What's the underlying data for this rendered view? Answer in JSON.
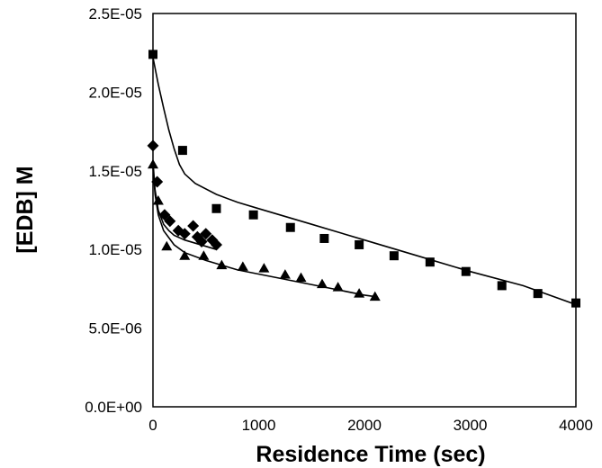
{
  "chart_data": {
    "type": "scatter",
    "title": "",
    "xlabel": "Residence Time (sec)",
    "ylabel": "[EDB] M",
    "xlim": [
      0,
      4000
    ],
    "ylim": [
      0,
      2.5e-05
    ],
    "x_ticks": [
      "0",
      "1000",
      "2000",
      "3000",
      "4000"
    ],
    "y_ticks": [
      "0.0E+00",
      "5.0E-06",
      "1.0E-05",
      "1.5E-05",
      "2.0E-05",
      "2.5E-05"
    ],
    "grid": false,
    "legend": "none",
    "series": [
      {
        "marker": "square",
        "points": [
          [
            0,
            2.24e-05
          ],
          [
            280,
            1.63e-05
          ],
          [
            600,
            1.26e-05
          ],
          [
            950,
            1.22e-05
          ],
          [
            1300,
            1.14e-05
          ],
          [
            1620,
            1.07e-05
          ],
          [
            1950,
            1.03e-05
          ],
          [
            2280,
            9.6e-06
          ],
          [
            2620,
            9.2e-06
          ],
          [
            2960,
            8.6e-06
          ],
          [
            3300,
            7.7e-06
          ],
          [
            3640,
            7.2e-06
          ],
          [
            4000,
            6.6e-06
          ]
        ],
        "fit": [
          [
            0,
            2.22e-05
          ],
          [
            50,
            2.05e-05
          ],
          [
            100,
            1.9e-05
          ],
          [
            150,
            1.76e-05
          ],
          [
            200,
            1.64e-05
          ],
          [
            250,
            1.54e-05
          ],
          [
            300,
            1.48e-05
          ],
          [
            400,
            1.42e-05
          ],
          [
            600,
            1.35e-05
          ],
          [
            800,
            1.3e-05
          ],
          [
            1000,
            1.26e-05
          ],
          [
            1500,
            1.16e-05
          ],
          [
            2000,
            1.06e-05
          ],
          [
            2500,
            9.6e-06
          ],
          [
            3000,
            8.6e-06
          ],
          [
            3500,
            7.7e-06
          ],
          [
            4000,
            6.5e-06
          ]
        ]
      },
      {
        "marker": "diamond",
        "points": [
          [
            0,
            1.66e-05
          ],
          [
            40,
            1.43e-05
          ],
          [
            110,
            1.22e-05
          ],
          [
            160,
            1.18e-05
          ],
          [
            240,
            1.12e-05
          ],
          [
            300,
            1.1e-05
          ],
          [
            380,
            1.15e-05
          ],
          [
            420,
            1.08e-05
          ],
          [
            460,
            1.05e-05
          ],
          [
            500,
            1.1e-05
          ],
          [
            560,
            1.06e-05
          ],
          [
            600,
            1.03e-05
          ]
        ],
        "fit": [
          [
            0,
            1.56e-05
          ],
          [
            20,
            1.38e-05
          ],
          [
            50,
            1.25e-05
          ],
          [
            100,
            1.16e-05
          ],
          [
            150,
            1.12e-05
          ],
          [
            200,
            1.09e-05
          ],
          [
            300,
            1.06e-05
          ],
          [
            400,
            1.04e-05
          ],
          [
            500,
            1.02e-05
          ],
          [
            600,
            1e-05
          ]
        ]
      },
      {
        "marker": "triangle",
        "points": [
          [
            0,
            1.54e-05
          ],
          [
            50,
            1.31e-05
          ],
          [
            130,
            1.02e-05
          ],
          [
            300,
            9.6e-06
          ],
          [
            480,
            9.6e-06
          ],
          [
            650,
            9e-06
          ],
          [
            850,
            8.9e-06
          ],
          [
            1050,
            8.8e-06
          ],
          [
            1250,
            8.4e-06
          ],
          [
            1400,
            8.2e-06
          ],
          [
            1600,
            7.8e-06
          ],
          [
            1750,
            7.6e-06
          ],
          [
            1950,
            7.2e-06
          ],
          [
            2100,
            7e-06
          ]
        ],
        "fit": [
          [
            0,
            1.52e-05
          ],
          [
            20,
            1.35e-05
          ],
          [
            50,
            1.22e-05
          ],
          [
            100,
            1.12e-05
          ],
          [
            200,
            1.03e-05
          ],
          [
            300,
            9.8e-06
          ],
          [
            500,
            9.3e-06
          ],
          [
            800,
            8.7e-06
          ],
          [
            1100,
            8.3e-06
          ],
          [
            1400,
            7.9e-06
          ],
          [
            1700,
            7.5e-06
          ],
          [
            2000,
            7.1e-06
          ],
          [
            2100,
            7e-06
          ]
        ]
      }
    ]
  }
}
